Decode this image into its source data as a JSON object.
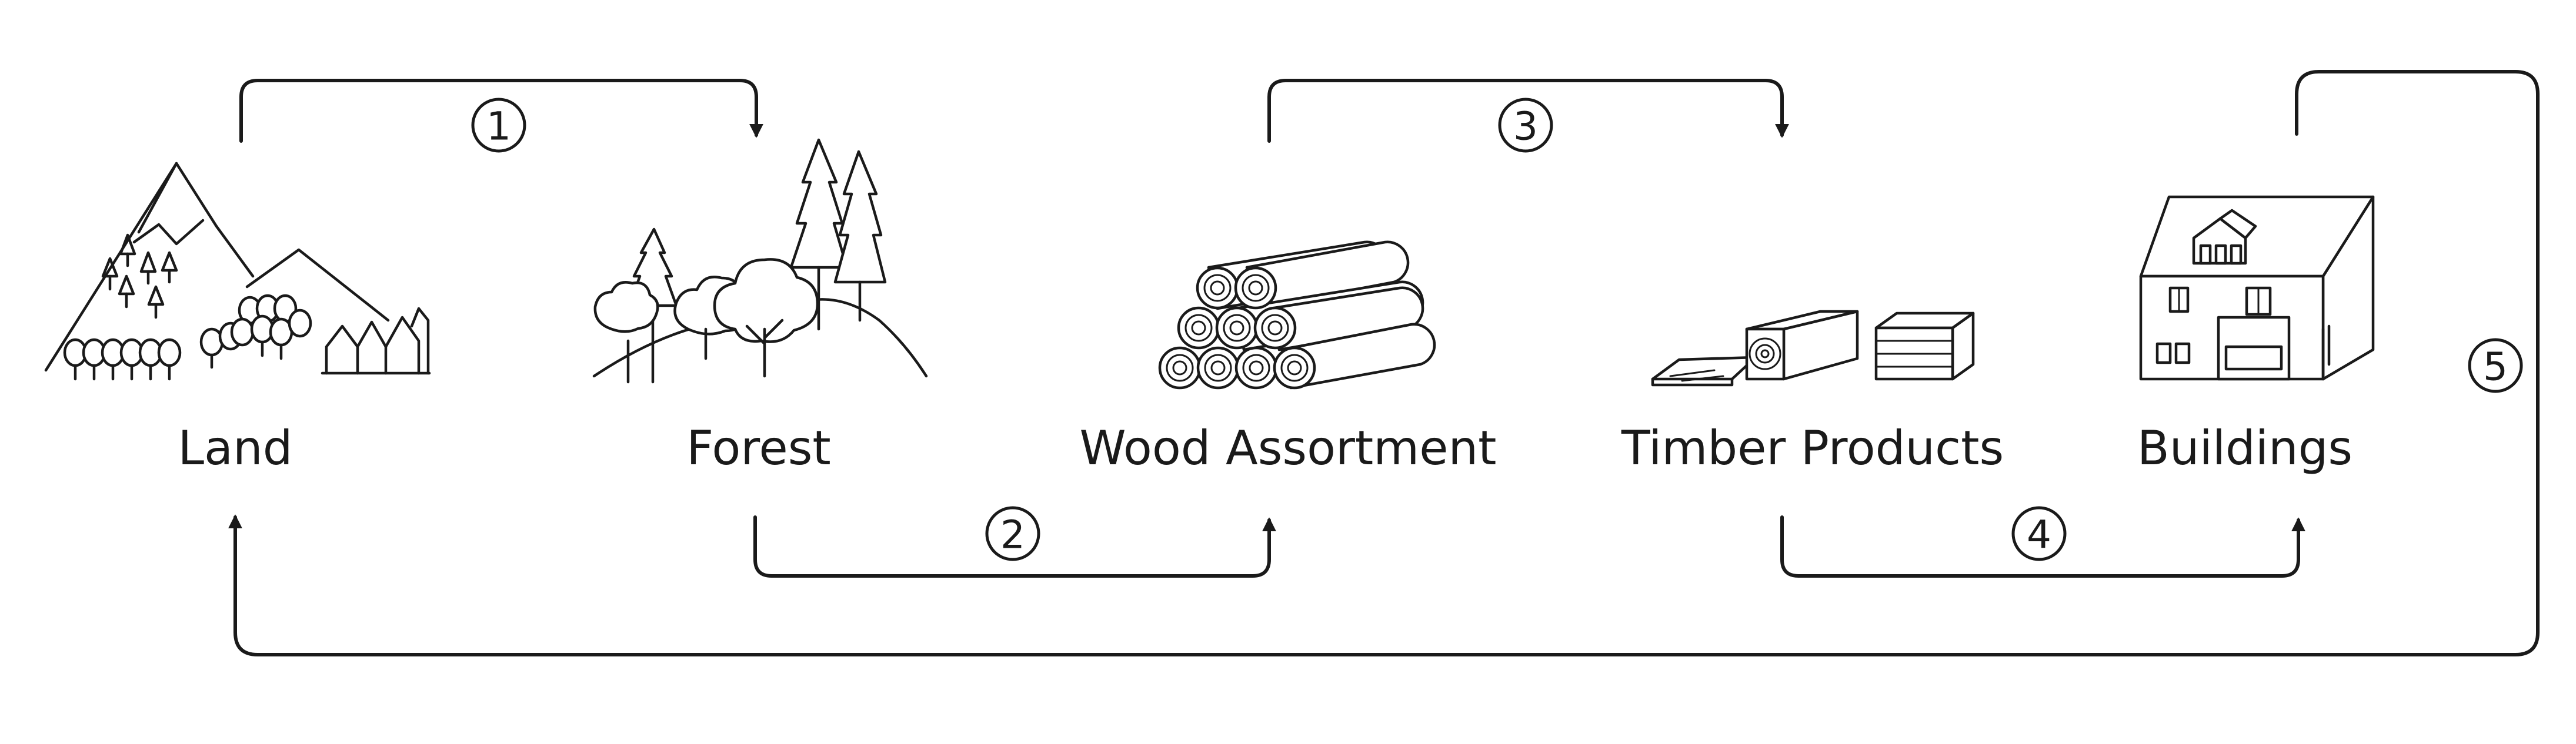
{
  "stages": [
    {
      "label": "Land",
      "icon": "mountain-landscape-icon"
    },
    {
      "label": "Forest",
      "icon": "forest-trees-icon"
    },
    {
      "label": "Wood Assortment",
      "icon": "log-pile-icon"
    },
    {
      "label": "Timber Products",
      "icon": "sawn-timber-icon"
    },
    {
      "label": "Buildings",
      "icon": "house-icon"
    }
  ],
  "steps": [
    {
      "number": "1"
    },
    {
      "number": "2"
    },
    {
      "number": "3"
    },
    {
      "number": "4"
    },
    {
      "number": "5"
    }
  ],
  "colors": {
    "stroke": "#1a1a1a",
    "background": "#ffffff"
  }
}
